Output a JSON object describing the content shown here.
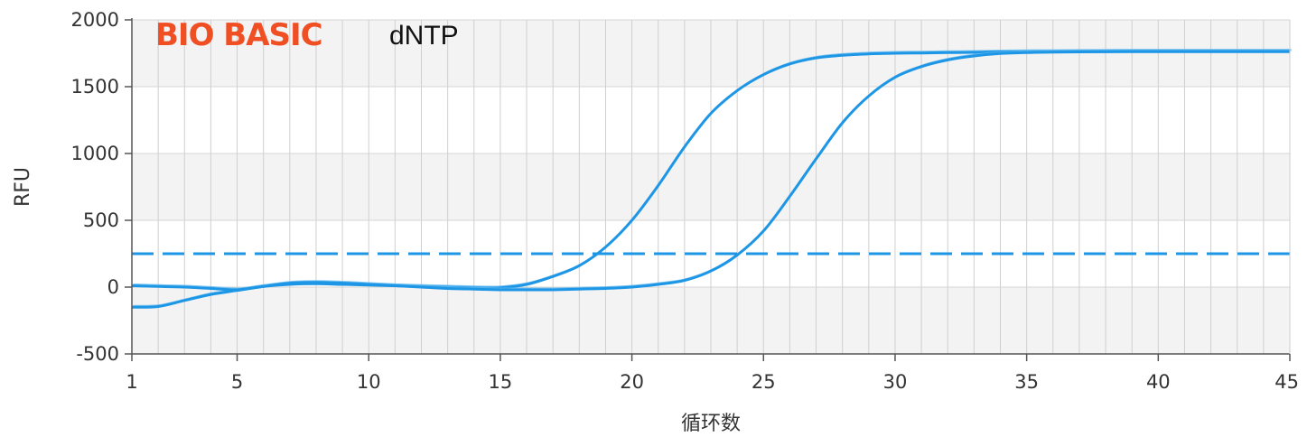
{
  "chart_data": {
    "type": "line",
    "title": "",
    "xlabel": "循环数",
    "ylabel": "RFU",
    "xlim": [
      1,
      45
    ],
    "ylim": [
      -500,
      2000
    ],
    "xticks": [
      1,
      5,
      10,
      15,
      20,
      25,
      30,
      35,
      40,
      45
    ],
    "yticks": [
      -500,
      0,
      500,
      1000,
      1500,
      2000
    ],
    "grid": true,
    "legend": "none",
    "logo": {
      "brand": "BIO BASIC",
      "product": "dNTP"
    },
    "threshold": 250,
    "series": [
      {
        "x": [
          1,
          2,
          3,
          4,
          5,
          6,
          7,
          8,
          9,
          10,
          11,
          12,
          13,
          14,
          15,
          16,
          17,
          18,
          19,
          20,
          21,
          22,
          23,
          24,
          25,
          26,
          27,
          28,
          29,
          30,
          31,
          32,
          33,
          34,
          35,
          36,
          37,
          38,
          39,
          40,
          41,
          42,
          43,
          44,
          45
        ],
        "y": [
          -150,
          -145,
          -100,
          -55,
          -25,
          5,
          20,
          25,
          20,
          15,
          10,
          5,
          0,
          -5,
          -5,
          20,
          80,
          160,
          300,
          500,
          760,
          1050,
          1300,
          1470,
          1590,
          1670,
          1715,
          1735,
          1745,
          1750,
          1752,
          1755,
          1757,
          1760,
          1762,
          1763,
          1764,
          1765,
          1766,
          1766,
          1766,
          1766,
          1766,
          1766,
          1766
        ]
      },
      {
        "x": [
          1,
          2,
          3,
          4,
          5,
          6,
          7,
          8,
          9,
          10,
          11,
          12,
          13,
          14,
          15,
          16,
          17,
          18,
          19,
          20,
          21,
          22,
          23,
          24,
          25,
          26,
          27,
          28,
          29,
          30,
          31,
          32,
          33,
          34,
          35,
          36,
          37,
          38,
          39,
          40,
          41,
          42,
          43,
          44,
          45
        ],
        "y": [
          10,
          5,
          0,
          -10,
          -20,
          5,
          30,
          35,
          30,
          20,
          10,
          0,
          -10,
          -15,
          -20,
          -20,
          -20,
          -15,
          -10,
          0,
          20,
          50,
          120,
          240,
          420,
          680,
          960,
          1230,
          1430,
          1570,
          1650,
          1700,
          1730,
          1748,
          1755,
          1758,
          1760,
          1761,
          1762,
          1762,
          1762,
          1762,
          1762,
          1762,
          1762
        ]
      }
    ]
  }
}
